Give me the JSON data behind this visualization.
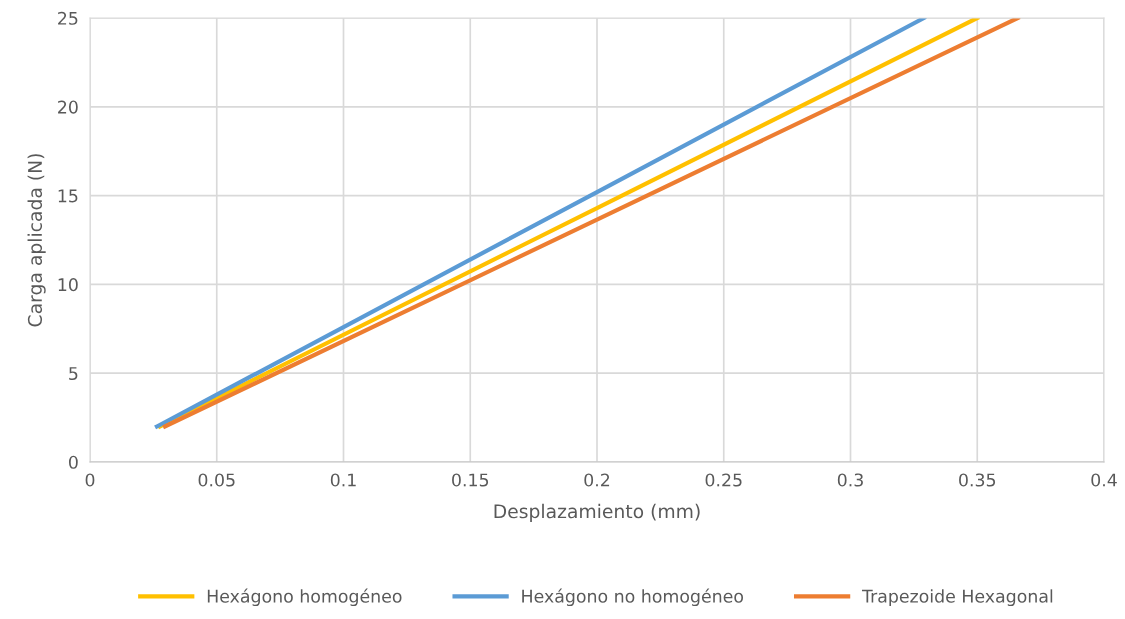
{
  "chart_data": {
    "type": "line",
    "xlabel": "Desplazamiento (mm)",
    "ylabel": "Carga aplicada (N)",
    "xlim": [
      0,
      0.4
    ],
    "xticks": [
      0,
      0.05,
      0.1,
      0.15,
      0.2,
      0.25,
      0.3,
      0.35,
      0.4
    ],
    "ylim": [
      0,
      25
    ],
    "yticks": [
      0,
      5,
      10,
      15,
      20,
      25
    ],
    "grid": true,
    "legend": "bottom",
    "marker": "none",
    "line_style": "solid",
    "series": [
      {
        "name": "Hexágono homogéneo",
        "color": "#ffc000",
        "x": [
          0.0276,
          0.2,
          0.35
        ],
        "values": [
          2,
          14.3,
          25
        ]
      },
      {
        "name": "Hexágono no homogéneo",
        "color": "#5b9bd5",
        "x": [
          0.0264,
          0.2,
          0.329
        ],
        "values": [
          2,
          15.2,
          25
        ]
      },
      {
        "name": "Trapezoide Hexagonal",
        "color": "#ed7d31",
        "x": [
          0.0296,
          0.2,
          0.366
        ],
        "values": [
          2,
          13.65,
          25
        ]
      }
    ]
  }
}
